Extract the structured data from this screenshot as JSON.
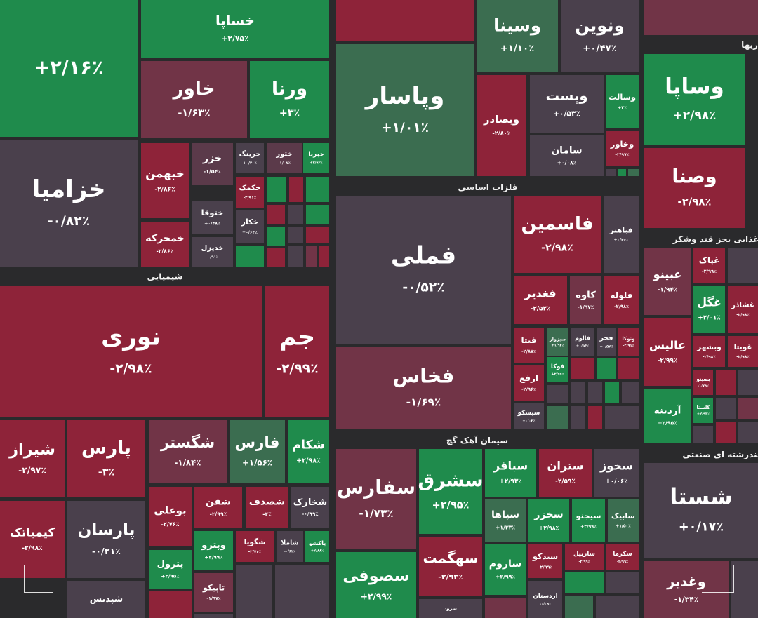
{
  "sections": [
    "شیمیایی",
    "فلزات اساسی",
    "سیمان آهک گچ",
    "ریها",
    "غذایی بجز قند وشکر",
    "چندرشته ای صنعتی"
  ],
  "tiles": [
    {
      "change": "+۲/۱۶٪",
      "color": "#1f8b4c"
    },
    {
      "label": "خساپا",
      "change": "+۲/۷۵٪",
      "color": "#1f8b4c"
    },
    {
      "label": "خاور",
      "change": "-۱/۶۳٪",
      "color": "#713447"
    },
    {
      "label": "ورنا",
      "change": "+۳٪",
      "color": "#1f8b4c"
    },
    {
      "label": "خزامیا",
      "change": "-۰/۸۲٪",
      "color": "#4a404c"
    },
    {
      "label": "خبهمن",
      "change": "-۲/۸۶٪",
      "color": "#8e2339"
    },
    {
      "label": "خزر",
      "change": "-۱/۵۴٪",
      "color": "#5b3a4a"
    },
    {
      "label": "خرینگ",
      "change": "+۰/۴۰٪",
      "color": "#4a404c"
    },
    {
      "label": "ختور",
      "change": "-۱/۰۸٪",
      "color": "#5b3a4a"
    },
    {
      "label": "خبرنا",
      "change": "+۲/۹۲٪",
      "color": "#1f8b4c"
    },
    {
      "label": "خمحرکه",
      "change": "-۲/۸۶٪",
      "color": "#8e2339"
    },
    {
      "label": "ختوقا",
      "change": "+۰/۴۸٪",
      "color": "#4a404c"
    },
    {
      "label": "خدیزل",
      "change": "-۰/۹۱٪",
      "color": "#4a404c"
    },
    {
      "label": "خکمک",
      "change": "-۲/۹۱٪",
      "color": "#8e2339"
    },
    {
      "label": "خکار",
      "change": "+۰/۶۲٪",
      "color": "#4a404c"
    },
    {
      "label": "نوری",
      "change": "-۲/۹۸٪",
      "color": "#8e2339"
    },
    {
      "label": "جم",
      "change": "-۲/۹۹٪",
      "color": "#8e2339"
    },
    {
      "label": "شیراز",
      "change": "-۲/۹۷٪",
      "color": "#8e2339"
    },
    {
      "label": "پارس",
      "change": "-۳٪",
      "color": "#8e2339"
    },
    {
      "label": "شگستر",
      "change": "-۱/۸۴٪",
      "color": "#713447"
    },
    {
      "label": "فارس",
      "change": "+۱/۵۶٪",
      "color": "#3b6d50"
    },
    {
      "label": "شکام",
      "change": "+۲/۹۸٪",
      "color": "#1f8b4c"
    },
    {
      "label": "کیمیاتک",
      "change": "-۲/۹۸٪",
      "color": "#8e2339"
    },
    {
      "label": "پارسان",
      "change": "-۰/۲۱٪",
      "color": "#4a404c"
    },
    {
      "label": "شپدیس",
      "color": "#4a404c"
    },
    {
      "label": "بوعلی",
      "change": "-۲/۷۶٪",
      "color": "#8e2339"
    },
    {
      "label": "شفن",
      "change": "-۲/۹۹٪",
      "color": "#8e2339"
    },
    {
      "label": "شصدف",
      "change": "-۳٪",
      "color": "#8e2339"
    },
    {
      "label": "شخارک",
      "change": "-۰/۹۹٪",
      "color": "#4a404c"
    },
    {
      "label": "وپترو",
      "change": "+۲/۹۹٪",
      "color": "#1f8b4c"
    },
    {
      "label": "پترول",
      "change": "+۲/۹۵٪",
      "color": "#1f8b4c"
    },
    {
      "label": "تاپیکو",
      "change": "-۱/۹۷٪",
      "color": "#713447"
    },
    {
      "label": "شگویا",
      "change": "-۲/۷۶٪",
      "color": "#8e2339"
    },
    {
      "label": "شاملا",
      "change": "-۰/۶۲٪",
      "color": "#4a404c"
    },
    {
      "label": "پاکشو",
      "change": "+۲/۸۸٪",
      "color": "#1f8b4c"
    },
    {
      "label": "وسینا",
      "change": "+۱/۱۰٪",
      "color": "#3b6d50"
    },
    {
      "label": "ونوین",
      "change": "+۰/۴۷٪",
      "color": "#4a404c"
    },
    {
      "label": "وپاسار",
      "change": "+۱/۰۱٪",
      "color": "#3b6d50"
    },
    {
      "label": "وبصادر",
      "change": "-۲/۸۰٪",
      "color": "#8e2339"
    },
    {
      "label": "وپست",
      "change": "+۰/۵۳٪",
      "color": "#4a404c"
    },
    {
      "label": "وسالت",
      "change": "+۳٪",
      "color": "#1f8b4c"
    },
    {
      "label": "سامان",
      "change": "+۰/۰۸٪",
      "color": "#4a404c"
    },
    {
      "label": "وخاور",
      "change": "-۲/۹۷٪",
      "color": "#8e2339"
    },
    {
      "label": "فملی",
      "change": "-۰/۵۲٪",
      "color": "#4a404c"
    },
    {
      "label": "فاسمین",
      "change": "-۲/۹۸٪",
      "color": "#8e2339"
    },
    {
      "label": "فباهنر",
      "change": "+۰/۴۶٪",
      "color": "#4a404c"
    },
    {
      "label": "فخاس",
      "change": "-۱/۶۹٪",
      "color": "#713447"
    },
    {
      "label": "فغدیر",
      "change": "-۲/۵۲٪",
      "color": "#8e2339"
    },
    {
      "label": "کاوه",
      "change": "-۱/۹۷٪",
      "color": "#713447"
    },
    {
      "label": "فلوله",
      "change": "-۲/۹۸٪",
      "color": "#8e2339"
    },
    {
      "label": "فیتا",
      "change": "-۲/۸۷٪",
      "color": "#8e2339"
    },
    {
      "label": "سیزوار",
      "change": "+۱/۹۳٪",
      "color": "#3b6d50"
    },
    {
      "label": "فالوم",
      "change": "+۰/۵۴٪",
      "color": "#4a404c"
    },
    {
      "label": "فجر",
      "change": "+۰/۵۲٪",
      "color": "#4a404c"
    },
    {
      "label": "ونوکا",
      "change": "-۲/۹۱٪",
      "color": "#8e2339"
    },
    {
      "label": "ارفع",
      "change": "-۲/۹۶٪",
      "color": "#8e2339"
    },
    {
      "label": "فوکا",
      "change": "+۲/۹۹٪",
      "color": "#1f8b4c"
    },
    {
      "label": "سیسکو",
      "change": "+۰/۰۲٪",
      "color": "#4a404c"
    },
    {
      "label": "سفارس",
      "change": "-۱/۷۳٪",
      "color": "#713447"
    },
    {
      "label": "سشرق",
      "change": "+۲/۹۵٪",
      "color": "#1f8b4c"
    },
    {
      "label": "سباقر",
      "change": "+۲/۹۳٪",
      "color": "#1f8b4c"
    },
    {
      "label": "ستران",
      "change": "-۲/۵۹٪",
      "color": "#8e2339"
    },
    {
      "label": "سخوز",
      "change": "+۰/۰۶٪",
      "color": "#4a404c"
    },
    {
      "label": "سپاها",
      "change": "+۱/۳۳٪",
      "color": "#3b6d50"
    },
    {
      "label": "سخزر",
      "change": "+۲/۹۸٪",
      "color": "#1f8b4c"
    },
    {
      "label": "سیجنو",
      "change": "+۲/۹۹٪",
      "color": "#1f8b4c"
    },
    {
      "label": "سابیک",
      "change": "+۱/۵۰٪",
      "color": "#3b6d50"
    },
    {
      "label": "سهگمت",
      "change": "-۲/۹۳٪",
      "color": "#8e2339"
    },
    {
      "label": "سصوفی",
      "change": "+۲/۹۹٪",
      "color": "#1f8b4c"
    },
    {
      "label": "ساروم",
      "change": "+۲/۹۹٪",
      "color": "#1f8b4c"
    },
    {
      "label": "سیدکو",
      "change": "-۲/۹۹٪",
      "color": "#8e2339"
    },
    {
      "label": "ساربیل",
      "change": "-۲/۹۹٪",
      "color": "#8e2339"
    },
    {
      "label": "سکرما",
      "change": "-۲/۹۹٪",
      "color": "#8e2339"
    },
    {
      "label": "اردستان",
      "change": "-۰/۰۹٪",
      "color": "#4a404c"
    },
    {
      "label": "سرود",
      "color": "#4a404c"
    },
    {
      "label": "وساپا",
      "change": "+۲/۹۸٪",
      "color": "#1f8b4c"
    },
    {
      "label": "وصنا",
      "change": "-۲/۹۸٪",
      "color": "#8e2339"
    },
    {
      "label": "غبینو",
      "change": "-۱/۹۴٪",
      "color": "#713447"
    },
    {
      "label": "غپاک",
      "change": "-۲/۹۹٪",
      "color": "#8e2339"
    },
    {
      "label": "غگل",
      "change": "+۲/۰۱٪",
      "color": "#1f8b4c"
    },
    {
      "label": "غشاذر",
      "change": "-۲/۹۸٪",
      "color": "#8e2339"
    },
    {
      "label": "عالیس",
      "change": "-۲/۹۹٪",
      "color": "#8e2339"
    },
    {
      "label": "وبشهر",
      "change": "-۲/۹۸٪",
      "color": "#8e2339"
    },
    {
      "label": "غویتا",
      "change": "-۲/۹۸٪",
      "color": "#8e2339"
    },
    {
      "label": "بصینو",
      "change": "-۱/۷۹٪",
      "color": "#8e2339"
    },
    {
      "label": "آردینه",
      "change": "+۲/۹۵٪",
      "color": "#1f8b4c"
    },
    {
      "label": "گلستا",
      "change": "+۲/۹۳٪",
      "color": "#1f8b4c"
    },
    {
      "label": "شستا",
      "change": "+۰/۱۷٪",
      "color": "#4a404c"
    },
    {
      "label": "وغدیر",
      "change": "-۱/۳۴٪",
      "color": "#713447"
    }
  ]
}
